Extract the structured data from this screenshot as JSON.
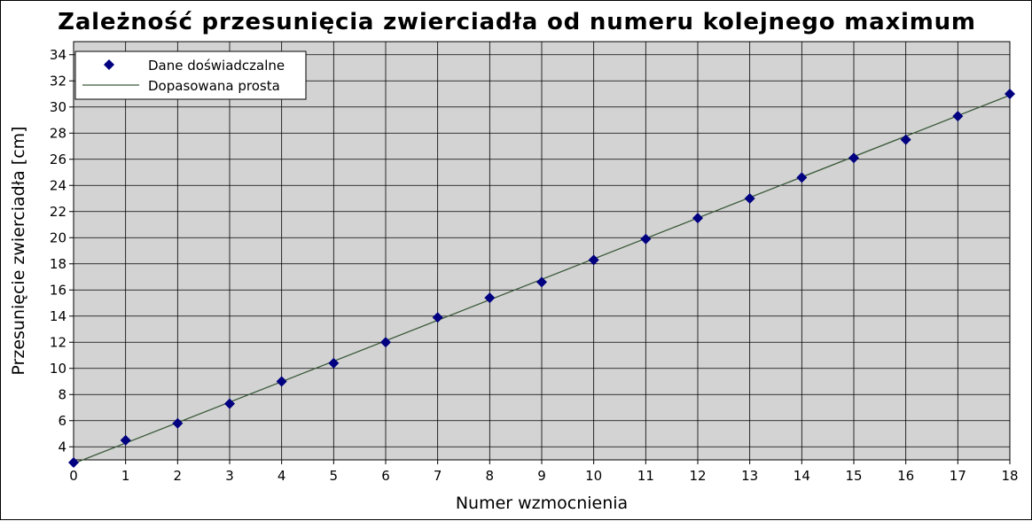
{
  "chart_data": {
    "type": "scatter",
    "title": "Zależność przesunięcia zwierciadła od numeru kolejnego maximum",
    "xlabel": "Numer wzmocnienia",
    "ylabel": "Przesunięcie zwierciadła [cm]",
    "xlim": [
      0,
      18
    ],
    "ylim": [
      3,
      35
    ],
    "xticks": [
      0,
      1,
      2,
      3,
      4,
      5,
      6,
      7,
      8,
      9,
      10,
      11,
      12,
      13,
      14,
      15,
      16,
      17,
      18
    ],
    "yticks": [
      4,
      6,
      8,
      10,
      12,
      14,
      16,
      18,
      20,
      22,
      24,
      26,
      28,
      30,
      32,
      34
    ],
    "grid": true,
    "legend_position": "top-left",
    "plot_background": "#d3d3d3",
    "grid_color": "#000000",
    "series": [
      {
        "name": "Dane doświadczalne",
        "kind": "markers",
        "marker": "diamond",
        "color": "#000080",
        "x": [
          0,
          1,
          2,
          3,
          4,
          5,
          6,
          7,
          8,
          9,
          10,
          11,
          12,
          13,
          14,
          15,
          16,
          17,
          18
        ],
        "y": [
          2.8,
          4.5,
          5.8,
          7.3,
          9.0,
          10.4,
          12.0,
          13.9,
          15.4,
          16.6,
          18.3,
          19.9,
          21.5,
          23.0,
          24.6,
          26.1,
          27.5,
          29.3,
          31.0
        ]
      },
      {
        "name": "Dopasowana prosta",
        "kind": "line",
        "color": "#3a5a3a",
        "x": [
          0,
          18
        ],
        "y": [
          2.72,
          30.9
        ]
      }
    ]
  }
}
